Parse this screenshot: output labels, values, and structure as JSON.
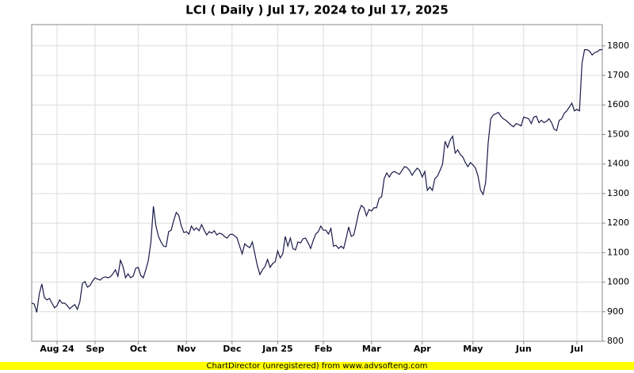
{
  "chart_data": {
    "type": "line",
    "title": "LCI ( Daily ) Jul 17, 2024 to Jul 17, 2025",
    "footer": "ChartDirector (unregistered) from www.advsofteng.com",
    "color": "#1a1a4a",
    "grid": true,
    "values": [
      929,
      926,
      898,
      961,
      994,
      948,
      940,
      945,
      929,
      913,
      921,
      940,
      929,
      929,
      921,
      910,
      918,
      924,
      908,
      934,
      996,
      1002,
      983,
      989,
      1004,
      1015,
      1010,
      1007,
      1015,
      1018,
      1015,
      1018,
      1028,
      1042,
      1020,
      1074,
      1053,
      1015,
      1028,
      1015,
      1020,
      1047,
      1050,
      1023,
      1015,
      1042,
      1074,
      1136,
      1257,
      1190,
      1155,
      1136,
      1122,
      1120,
      1171,
      1176,
      1209,
      1236,
      1226,
      1190,
      1168,
      1171,
      1163,
      1190,
      1176,
      1184,
      1174,
      1195,
      1176,
      1160,
      1171,
      1166,
      1174,
      1160,
      1166,
      1163,
      1155,
      1149,
      1160,
      1163,
      1157,
      1149,
      1122,
      1096,
      1130,
      1122,
      1117,
      1136,
      1096,
      1055,
      1026,
      1042,
      1053,
      1077,
      1050,
      1063,
      1069,
      1106,
      1082,
      1096,
      1155,
      1122,
      1149,
      1114,
      1109,
      1136,
      1133,
      1147,
      1149,
      1133,
      1114,
      1141,
      1163,
      1171,
      1190,
      1176,
      1176,
      1163,
      1182,
      1122,
      1125,
      1114,
      1122,
      1114,
      1149,
      1187,
      1155,
      1160,
      1198,
      1238,
      1260,
      1252,
      1225,
      1246,
      1241,
      1252,
      1252,
      1284,
      1289,
      1351,
      1370,
      1356,
      1370,
      1375,
      1370,
      1365,
      1378,
      1391,
      1388,
      1378,
      1362,
      1375,
      1386,
      1378,
      1356,
      1375,
      1311,
      1322,
      1311,
      1351,
      1359,
      1378,
      1399,
      1477,
      1456,
      1481,
      1494,
      1437,
      1448,
      1432,
      1424,
      1405,
      1391,
      1405,
      1397,
      1386,
      1359,
      1311,
      1297,
      1338,
      1472,
      1553,
      1566,
      1570,
      1575,
      1562,
      1553,
      1548,
      1540,
      1532,
      1526,
      1537,
      1534,
      1529,
      1559,
      1556,
      1553,
      1537,
      1559,
      1562,
      1540,
      1548,
      1540,
      1545,
      1553,
      1540,
      1518,
      1513,
      1548,
      1553,
      1572,
      1580,
      1593,
      1606,
      1580,
      1585,
      1580,
      1741,
      1787,
      1787,
      1782,
      1769,
      1777,
      1780,
      1787,
      1787
    ],
    "xlim": [
      0,
      225
    ],
    "xticks": [
      {
        "value": 10,
        "label": "Aug 24"
      },
      {
        "value": 25,
        "label": "Sep"
      },
      {
        "value": 42,
        "label": "Oct"
      },
      {
        "value": 61,
        "label": "Nov"
      },
      {
        "value": 79,
        "label": "Dec"
      },
      {
        "value": 97,
        "label": "Jan 25"
      },
      {
        "value": 115,
        "label": "Feb"
      },
      {
        "value": 134,
        "label": "Mar"
      },
      {
        "value": 154,
        "label": "Apr"
      },
      {
        "value": 174,
        "label": "May"
      },
      {
        "value": 194,
        "label": "Jun"
      },
      {
        "value": 215,
        "label": "Jul"
      }
    ],
    "ylim": [
      800,
      1872
    ],
    "yticks": [
      800,
      900,
      1000,
      1100,
      1200,
      1300,
      1400,
      1500,
      1600,
      1700,
      1800
    ]
  }
}
